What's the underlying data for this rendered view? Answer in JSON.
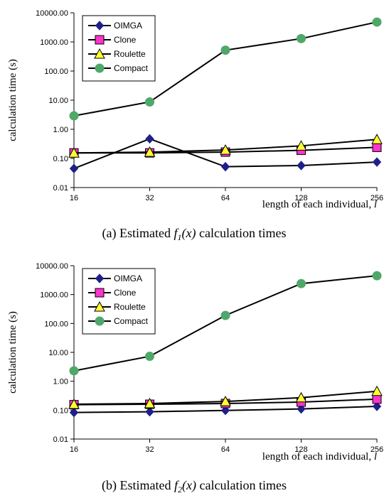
{
  "chart_data": [
    {
      "type": "line",
      "y_scale": "log",
      "x_scale": "log2",
      "categories": [
        "16",
        "32",
        "64",
        "128",
        "256"
      ],
      "x": [
        16,
        32,
        64,
        128,
        256
      ],
      "ylim": [
        0.01,
        10000
      ],
      "y_ticks": [
        "0.01",
        "0.10",
        "1.00",
        "10.00",
        "100.00",
        "1000.00",
        "10000.00"
      ],
      "ylabel": "calculation time (s)",
      "xlabel": "length of each individual, ",
      "xlabel_var": "l",
      "legend_position": "top-left",
      "caption": {
        "prefix": "(a) Estimated ",
        "func": "f",
        "sub": "1",
        "arg": "(x)",
        "suffix": " calculation times"
      },
      "series": [
        {
          "name": "OIMGA",
          "marker": "diamond",
          "color": "#1f1f8c",
          "values": [
            0.045,
            0.47,
            0.052,
            0.057,
            0.075
          ]
        },
        {
          "name": "Clone",
          "marker": "square",
          "color": "#ff33cc",
          "values": [
            0.155,
            0.155,
            0.165,
            0.19,
            0.24
          ]
        },
        {
          "name": "Roulette",
          "marker": "triangle",
          "color": "#ffff33",
          "values": [
            0.155,
            0.165,
            0.195,
            0.27,
            0.45
          ]
        },
        {
          "name": "Compact",
          "marker": "circle",
          "color": "#4fa869",
          "values": [
            2.9,
            8.7,
            520,
            1300,
            4800
          ]
        }
      ]
    },
    {
      "type": "line",
      "y_scale": "log",
      "x_scale": "log2",
      "categories": [
        "16",
        "32",
        "64",
        "128",
        "256"
      ],
      "x": [
        16,
        32,
        64,
        128,
        256
      ],
      "ylim": [
        0.01,
        10000
      ],
      "y_ticks": [
        "0.01",
        "0.10",
        "1.00",
        "10.00",
        "100.00",
        "1000.00",
        "10000.00"
      ],
      "ylabel": "calculation time (s)",
      "xlabel": "length of each individual, ",
      "xlabel_var": "l",
      "legend_position": "top-left",
      "caption": {
        "prefix": "(b) Estimated ",
        "func": "f",
        "sub": "2",
        "arg": "(x)",
        "suffix": " calculation times"
      },
      "series": [
        {
          "name": "OIMGA",
          "marker": "diamond",
          "color": "#1f1f8c",
          "values": [
            0.083,
            0.088,
            0.098,
            0.11,
            0.135
          ]
        },
        {
          "name": "Clone",
          "marker": "square",
          "color": "#ff33cc",
          "values": [
            0.155,
            0.16,
            0.17,
            0.19,
            0.24
          ]
        },
        {
          "name": "Roulette",
          "marker": "triangle",
          "color": "#ffff33",
          "values": [
            0.16,
            0.17,
            0.2,
            0.27,
            0.45
          ]
        },
        {
          "name": "Compact",
          "marker": "circle",
          "color": "#4fa869",
          "values": [
            2.3,
            7.3,
            190,
            2400,
            4500
          ]
        }
      ]
    }
  ]
}
